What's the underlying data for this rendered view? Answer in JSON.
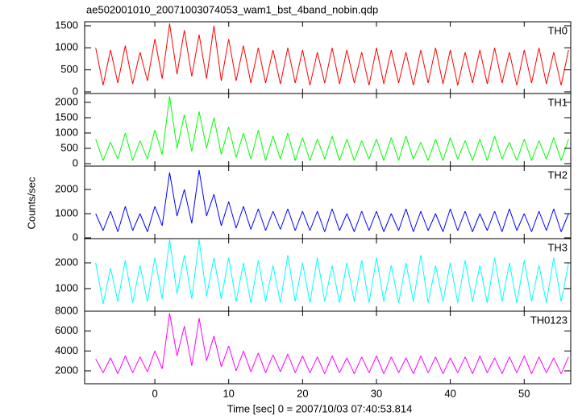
{
  "chart_data": [
    {
      "type": "line",
      "title": "ae502001010_20071003074053_wam1_bst_4band_nobin.qdp",
      "x": [
        -8,
        -7,
        -6,
        -5,
        -4,
        -3,
        -2,
        -1,
        0,
        1,
        2,
        3,
        4,
        5,
        6,
        7,
        8,
        9,
        10,
        11,
        12,
        13,
        14,
        15,
        16,
        17,
        18,
        19,
        20,
        21,
        22,
        23,
        24,
        25,
        26,
        27,
        28,
        29,
        30,
        31,
        32,
        33,
        34,
        35,
        36,
        37,
        38,
        39,
        40,
        41,
        42,
        43,
        44,
        45,
        46,
        47,
        48,
        49,
        50,
        51,
        52,
        53,
        54,
        55,
        56
      ],
      "xlim": [
        -9.5,
        56.3
      ],
      "xticks": [
        0,
        10,
        20,
        30,
        40,
        50
      ],
      "ylim": [
        -37,
        1591
      ],
      "yticks": [
        0,
        500,
        1000,
        1500
      ],
      "series": [
        {
          "name": "TH0",
          "color": "#ff0000",
          "values": [
            1000,
            150,
            950,
            200,
            1050,
            180,
            900,
            250,
            1200,
            300,
            1550,
            400,
            1400,
            350,
            1300,
            300,
            1500,
            250,
            1200,
            250,
            1050,
            200,
            1000,
            200,
            950,
            180,
            1000,
            200,
            950,
            150,
            900,
            200,
            1000,
            180,
            950,
            200,
            900,
            150,
            1000,
            180,
            950,
            200,
            900,
            150,
            950,
            200,
            1000,
            180,
            950,
            150,
            900,
            200,
            950,
            180,
            1000,
            200,
            900,
            150,
            950,
            200,
            1000,
            180,
            900,
            150,
            950
          ]
        }
      ]
    },
    {
      "type": "line",
      "x": [
        -8,
        -7,
        -6,
        -5,
        -4,
        -3,
        -2,
        -1,
        0,
        1,
        2,
        3,
        4,
        5,
        6,
        7,
        8,
        9,
        10,
        11,
        12,
        13,
        14,
        15,
        16,
        17,
        18,
        19,
        20,
        21,
        22,
        23,
        24,
        25,
        26,
        27,
        28,
        29,
        30,
        31,
        32,
        33,
        34,
        35,
        36,
        37,
        38,
        39,
        40,
        41,
        42,
        43,
        44,
        45,
        46,
        47,
        48,
        49,
        50,
        51,
        52,
        53,
        54,
        55,
        56
      ],
      "xlim": [
        -9.5,
        56.3
      ],
      "xticks": [
        0,
        10,
        20,
        30,
        40,
        50
      ],
      "ylim": [
        -79,
        2289
      ],
      "yticks": [
        0,
        500,
        1000,
        1500,
        2000
      ],
      "series": [
        {
          "name": "TH1",
          "color": "#00ff00",
          "values": [
            800,
            100,
            700,
            150,
            1000,
            100,
            750,
            150,
            1100,
            300,
            2200,
            500,
            1600,
            400,
            1700,
            500,
            1500,
            300,
            1200,
            200,
            1000,
            150,
            1100,
            100,
            900,
            150,
            1000,
            100,
            850,
            100,
            800,
            150,
            900,
            100,
            800,
            100,
            750,
            150,
            800,
            100,
            850,
            100,
            900,
            150,
            700,
            100,
            800,
            100,
            850,
            150,
            750,
            100,
            800,
            100,
            900,
            150,
            700,
            100,
            800,
            100,
            750,
            150,
            850,
            100,
            800
          ]
        }
      ]
    },
    {
      "type": "line",
      "ylabel": "Counts/sec",
      "x": [
        -8,
        -7,
        -6,
        -5,
        -4,
        -3,
        -2,
        -1,
        0,
        1,
        2,
        3,
        4,
        5,
        6,
        7,
        8,
        9,
        10,
        11,
        12,
        13,
        14,
        15,
        16,
        17,
        18,
        19,
        20,
        21,
        22,
        23,
        24,
        25,
        26,
        27,
        28,
        29,
        30,
        31,
        32,
        33,
        34,
        35,
        36,
        37,
        38,
        39,
        40,
        41,
        42,
        43,
        44,
        45,
        46,
        47,
        48,
        49,
        50,
        51,
        52,
        53,
        54,
        55,
        56
      ],
      "xlim": [
        -9.5,
        56.3
      ],
      "xticks": [
        0,
        10,
        20,
        30,
        40,
        50
      ],
      "ylim": [
        -33,
        2967
      ],
      "yticks": [
        0,
        1000,
        2000
      ],
      "series": [
        {
          "name": "TH2",
          "color": "#0000ff",
          "values": [
            1000,
            300,
            1100,
            250,
            1300,
            300,
            1000,
            250,
            1300,
            500,
            2700,
            900,
            2000,
            600,
            2800,
            900,
            1800,
            500,
            1500,
            400,
            1300,
            350,
            1200,
            300,
            1100,
            350,
            1200,
            300,
            1100,
            300,
            1100,
            250,
            1200,
            300,
            1000,
            250,
            1100,
            300,
            1100,
            250,
            1000,
            300,
            1200,
            250,
            1100,
            300,
            1000,
            250,
            1200,
            300,
            1100,
            250,
            1000,
            300,
            1100,
            250,
            1200,
            300,
            1000,
            250,
            1100,
            300,
            1200,
            250,
            1000
          ]
        }
      ]
    },
    {
      "type": "line",
      "x": [
        -8,
        -7,
        -6,
        -5,
        -4,
        -3,
        -2,
        -1,
        0,
        1,
        2,
        3,
        4,
        5,
        6,
        7,
        8,
        9,
        10,
        11,
        12,
        13,
        14,
        15,
        16,
        17,
        18,
        19,
        20,
        21,
        22,
        23,
        24,
        25,
        26,
        27,
        28,
        29,
        30,
        31,
        32,
        33,
        34,
        35,
        36,
        37,
        38,
        39,
        40,
        41,
        42,
        43,
        44,
        45,
        46,
        47,
        48,
        49,
        50,
        51,
        52,
        53,
        54,
        55,
        56
      ],
      "xlim": [
        -9.5,
        56.3
      ],
      "xticks": [
        0,
        10,
        20,
        30,
        40,
        50
      ],
      "ylim": [
        125,
        2938
      ],
      "yticks": [
        1000,
        2000
      ],
      "series": [
        {
          "name": "TH3",
          "color": "#00ffff",
          "values": [
            2000,
            400,
            1800,
            500,
            2100,
            450,
            1900,
            500,
            2200,
            600,
            2900,
            800,
            2300,
            600,
            2900,
            700,
            2200,
            600,
            2200,
            500,
            2000,
            450,
            2100,
            500,
            1900,
            450,
            2300,
            500,
            2000,
            450,
            2200,
            500,
            1900,
            450,
            2000,
            500,
            2100,
            450,
            2200,
            500,
            1900,
            450,
            2000,
            500,
            2300,
            450,
            1900,
            500,
            2000,
            450,
            2100,
            500,
            1900,
            450,
            2200,
            500,
            2000,
            450,
            2100,
            500,
            1900,
            450,
            2200,
            500,
            2000
          ]
        }
      ]
    },
    {
      "type": "line",
      "xlabel": "Time [sec] 0 = 2007/10/03 07:40:53.814",
      "x": [
        -8,
        -7,
        -6,
        -5,
        -4,
        -3,
        -2,
        -1,
        0,
        1,
        2,
        3,
        4,
        5,
        6,
        7,
        8,
        9,
        10,
        11,
        12,
        13,
        14,
        15,
        16,
        17,
        18,
        19,
        20,
        21,
        22,
        23,
        24,
        25,
        26,
        27,
        28,
        29,
        30,
        31,
        32,
        33,
        34,
        35,
        36,
        37,
        38,
        39,
        40,
        41,
        42,
        43,
        44,
        45,
        46,
        47,
        48,
        49,
        50,
        51,
        52,
        53,
        54,
        55,
        56
      ],
      "xlim": [
        -9.5,
        56.3
      ],
      "xticks": [
        0,
        10,
        20,
        30,
        40,
        50
      ],
      "ylim": [
        700,
        8000
      ],
      "yticks": [
        2000,
        4000,
        6000,
        8000
      ],
      "series": [
        {
          "name": "TH0123",
          "color": "#ff00ff",
          "values": [
            3200,
            1800,
            3300,
            1700,
            3500,
            1800,
            3400,
            1900,
            4000,
            2200,
            7800,
            3500,
            6500,
            2500,
            7300,
            3000,
            5500,
            2400,
            4500,
            2000,
            4000,
            1900,
            3800,
            1800,
            3600,
            1900,
            3700,
            1800,
            3500,
            1800,
            3400,
            1700,
            3500,
            1800,
            3300,
            1700,
            3400,
            1800,
            3500,
            1700,
            3400,
            1800,
            3300,
            1700,
            3500,
            1800,
            3400,
            1700,
            3300,
            1800,
            3400,
            1700,
            3500,
            1800,
            3300,
            1700,
            3400,
            1800,
            3500,
            1700,
            3400,
            1800,
            3300,
            1700,
            3400
          ]
        }
      ]
    }
  ]
}
